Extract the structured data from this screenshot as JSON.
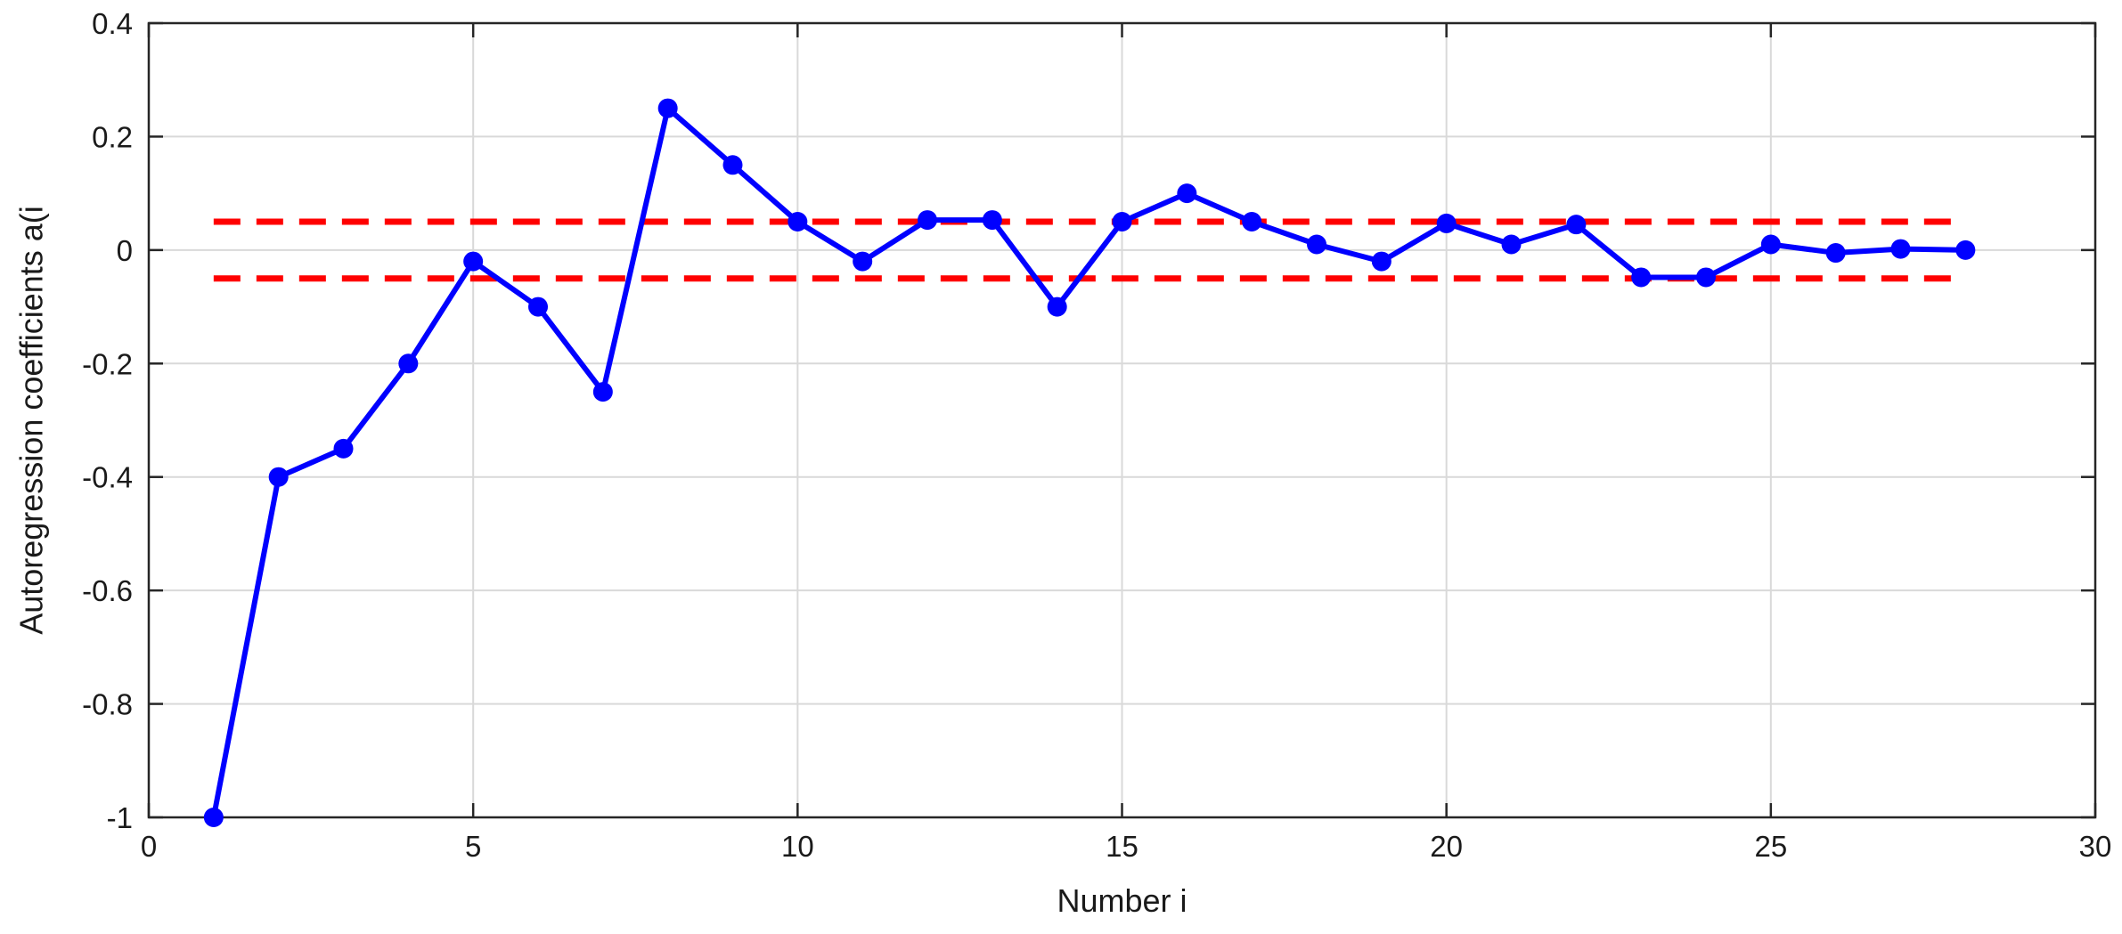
{
  "chart_data": {
    "type": "line",
    "xlabel": "Number i",
    "ylabel": "Autoregression coefficients a(i",
    "xlim": [
      0,
      30
    ],
    "ylim": [
      -1,
      0.4
    ],
    "xticks": [
      0,
      5,
      10,
      15,
      20,
      25,
      30
    ],
    "yticks": [
      -1,
      -0.8,
      -0.6,
      -0.4,
      -0.2,
      0,
      0.2,
      0.4
    ],
    "xtick_labels": [
      "0",
      "5",
      "10",
      "15",
      "20",
      "25",
      "30"
    ],
    "ytick_labels": [
      "-1",
      "-0.8",
      "-0.6",
      "-0.4",
      "-0.2",
      "0",
      "0.2",
      "0.4"
    ],
    "grid": true,
    "series": [
      {
        "color": "#0000ff",
        "marker": "circle",
        "style": "solid",
        "x": [
          1,
          2,
          3,
          4,
          5,
          6,
          7,
          8,
          9,
          10,
          11,
          12,
          13,
          14,
          15,
          16,
          17,
          18,
          19,
          20,
          21,
          22,
          23,
          24,
          25,
          26,
          27,
          28
        ],
        "y": [
          -1.0,
          -0.4,
          -0.35,
          -0.2,
          -0.02,
          -0.1,
          -0.25,
          0.25,
          0.15,
          0.05,
          -0.02,
          0.053,
          0.053,
          -0.1,
          0.05,
          0.1,
          0.05,
          0.01,
          -0.02,
          0.047,
          0.01,
          0.045,
          -0.048,
          -0.048,
          0.01,
          -0.005,
          0.002,
          0.0
        ]
      }
    ],
    "reference_lines": [
      {
        "color": "#ff0000",
        "style": "dashed",
        "y": 0.05,
        "x_range": [
          1,
          28
        ]
      },
      {
        "color": "#ff0000",
        "style": "dashed",
        "y": -0.05,
        "x_range": [
          1,
          28
        ]
      }
    ]
  }
}
